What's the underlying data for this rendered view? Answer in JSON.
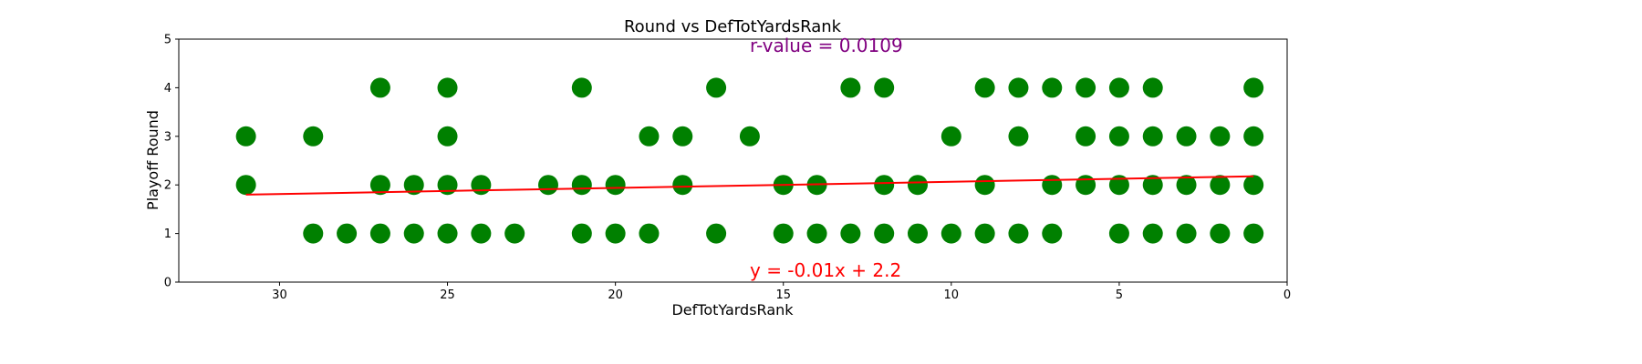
{
  "chart_data": {
    "type": "scatter",
    "title": "Round vs DefTotYardsRank",
    "xlabel": "DefTotYardsRank",
    "ylabel": "Playoff Round",
    "xlim": [
      33,
      0
    ],
    "ylim": [
      0,
      5
    ],
    "x_ticks": [
      30,
      25,
      20,
      15,
      10,
      5,
      0
    ],
    "y_ticks": [
      0,
      1,
      2,
      3,
      4,
      5
    ],
    "x_tick_labels": [
      "30",
      "25",
      "20",
      "15",
      "10",
      "5",
      "0"
    ],
    "y_tick_labels": [
      "0",
      "1",
      "2",
      "3",
      "4",
      "5"
    ],
    "grid": false,
    "marker_color": "#008000",
    "line_color": "#ff0000",
    "series": [
      {
        "points": [
          [
            31,
            3
          ],
          [
            31,
            2
          ],
          [
            29,
            3
          ],
          [
            29,
            1
          ],
          [
            28,
            1
          ],
          [
            27,
            4
          ],
          [
            27,
            2
          ],
          [
            27,
            1
          ],
          [
            26,
            2
          ],
          [
            26,
            1
          ],
          [
            25,
            4
          ],
          [
            25,
            3
          ],
          [
            25,
            2
          ],
          [
            25,
            1
          ],
          [
            24,
            2
          ],
          [
            24,
            1
          ],
          [
            23,
            1
          ],
          [
            22,
            2
          ],
          [
            21,
            4
          ],
          [
            21,
            2
          ],
          [
            21,
            1
          ],
          [
            20,
            2
          ],
          [
            20,
            1
          ],
          [
            19,
            3
          ],
          [
            19,
            1
          ],
          [
            18,
            3
          ],
          [
            18,
            2
          ],
          [
            17,
            4
          ],
          [
            17,
            1
          ],
          [
            16,
            3
          ],
          [
            15,
            2
          ],
          [
            15,
            1
          ],
          [
            14,
            2
          ],
          [
            14,
            1
          ],
          [
            13,
            4
          ],
          [
            13,
            1
          ],
          [
            12,
            4
          ],
          [
            12,
            2
          ],
          [
            12,
            1
          ],
          [
            11,
            2
          ],
          [
            11,
            1
          ],
          [
            10,
            3
          ],
          [
            10,
            1
          ],
          [
            9,
            4
          ],
          [
            9,
            2
          ],
          [
            9,
            1
          ],
          [
            8,
            4
          ],
          [
            8,
            3
          ],
          [
            8,
            1
          ],
          [
            7,
            4
          ],
          [
            7,
            2
          ],
          [
            7,
            1
          ],
          [
            6,
            4
          ],
          [
            6,
            3
          ],
          [
            6,
            2
          ],
          [
            5,
            4
          ],
          [
            5,
            3
          ],
          [
            5,
            2
          ],
          [
            5,
            1
          ],
          [
            4,
            4
          ],
          [
            4,
            3
          ],
          [
            4,
            2
          ],
          [
            4,
            1
          ],
          [
            3,
            3
          ],
          [
            3,
            2
          ],
          [
            3,
            1
          ],
          [
            2,
            3
          ],
          [
            2,
            2
          ],
          [
            2,
            1
          ],
          [
            1,
            4
          ],
          [
            1,
            3
          ],
          [
            1,
            2
          ],
          [
            1,
            1
          ]
        ]
      }
    ],
    "regression": {
      "slope": -0.0126,
      "intercept": 2.19,
      "x_range": [
        31,
        1
      ]
    },
    "annotations": {
      "r_value": {
        "text": "r-value = 0.0109",
        "color": "#800080"
      },
      "equation": {
        "text": "y = -0.01x + 2.2",
        "color": "#ff0000"
      }
    }
  }
}
